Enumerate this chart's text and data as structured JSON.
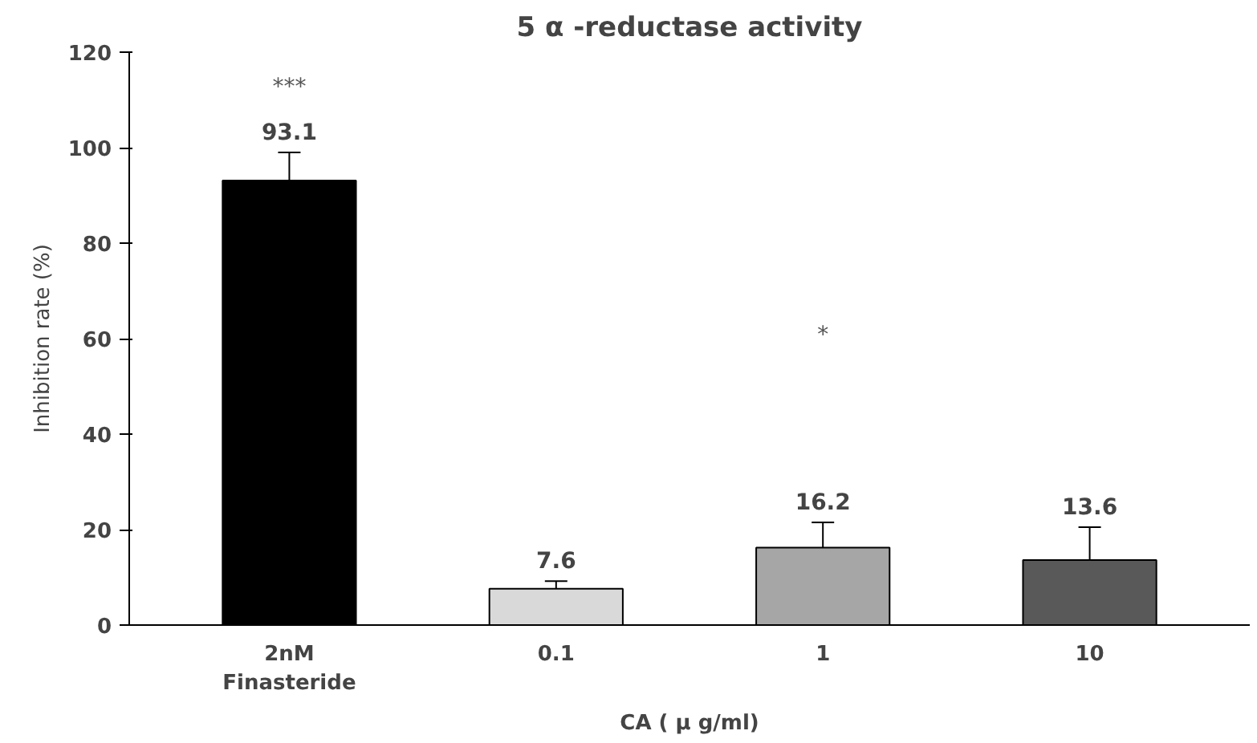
{
  "chart_data": {
    "type": "bar",
    "title": "5 α -reductase activity",
    "ylabel": "Inhibition rate (%)",
    "xlabel": "CA ( μ g/ml)",
    "categories": [
      "2nM\nFinasteride",
      "0.1",
      "1",
      "10"
    ],
    "values": [
      93.1,
      7.6,
      16.2,
      13.6
    ],
    "colors": [
      "#000000",
      "#d9d9d9",
      "#a6a6a6",
      "#595959"
    ],
    "errors": [
      [
        93.1,
        99
      ],
      [
        7.6,
        9.2
      ],
      [
        16.2,
        21.5
      ],
      [
        13.6,
        20.5
      ]
    ],
    "data_labels": true,
    "annotations": [
      "***",
      "*"
    ],
    "ylim": [
      0,
      120
    ],
    "yticks": [
      0,
      20,
      40,
      60,
      80,
      100,
      120
    ],
    "grid": false
  }
}
